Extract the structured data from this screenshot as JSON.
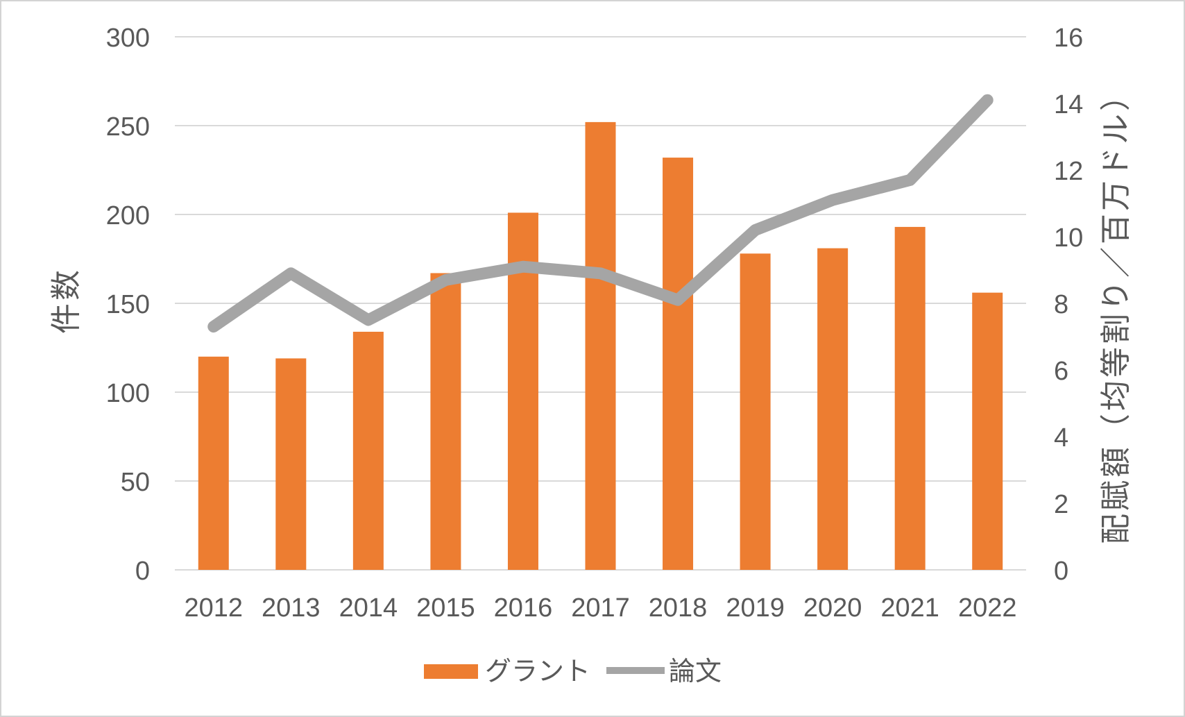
{
  "chart_data": {
    "type": "combo_bar_line",
    "categories": [
      "2012",
      "2013",
      "2014",
      "2015",
      "2016",
      "2017",
      "2018",
      "2019",
      "2020",
      "2021",
      "2022"
    ],
    "series": [
      {
        "name": "グラント",
        "type": "bar",
        "axis": "left",
        "color": "#ED7D31",
        "values": [
          120,
          119,
          134,
          167,
          201,
          252,
          232,
          178,
          181,
          193,
          156
        ]
      },
      {
        "name": "論文",
        "type": "line",
        "axis": "right",
        "color": "#A5A5A5",
        "values": [
          7.3,
          8.9,
          7.5,
          8.7,
          9.1,
          8.9,
          8.1,
          10.2,
          11.1,
          11.7,
          14.1
        ]
      }
    ],
    "left_axis": {
      "title": "件数",
      "min": 0,
      "max": 300,
      "tick_step": 50,
      "ticks": [
        "0",
        "50",
        "100",
        "150",
        "200",
        "250",
        "300"
      ]
    },
    "right_axis": {
      "title": "配賦額（均等割り／百万ドル）",
      "min": 0,
      "max": 16,
      "tick_step": 2,
      "ticks": [
        "0",
        "2",
        "4",
        "6",
        "8",
        "10",
        "12",
        "14",
        "16"
      ]
    },
    "grid": true,
    "legend_position": "bottom",
    "colors": {
      "grid": "#D9D9D9",
      "axis_text": "#595959",
      "background": "#FFFFFF",
      "border": "#D3D3D3"
    }
  }
}
